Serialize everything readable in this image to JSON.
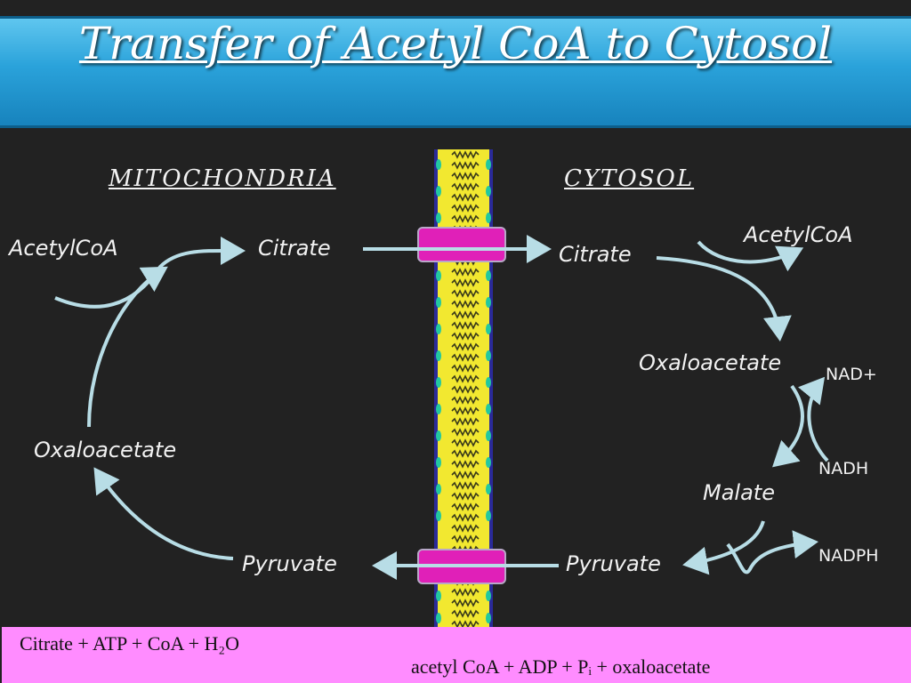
{
  "title": "Transfer of Acetyl CoA to Cytosol",
  "headers": {
    "mitochondria": "MITOCHONDRIA",
    "cytosol": "CYTOSOL"
  },
  "mitochondria": {
    "acetylcoa": "AcetylCoA",
    "citrate": "Citrate",
    "oxaloacetate": "Oxaloacetate",
    "pyruvate": "Pyruvate"
  },
  "cytosol": {
    "citrate": "Citrate",
    "acetylcoa": "AcetylCoA",
    "oxaloacetate": "Oxaloacetate",
    "nad_plus": "NAD+",
    "nadh": "NADH",
    "malate": "Malate",
    "nadph": "NADPH",
    "pyruvate": "Pyruvate"
  },
  "equation": {
    "left": "Citrate + ATP + CoA + H₂O",
    "right": "acetyl CoA + ADP + Pᵢ + oxaloacetate"
  },
  "colors": {
    "arrow": "#b8dde6",
    "banner": "#2aa2da",
    "membrane_yellow": "#f2e830",
    "transporter": "#e020b8",
    "equation_bg": "#ff8cff"
  }
}
